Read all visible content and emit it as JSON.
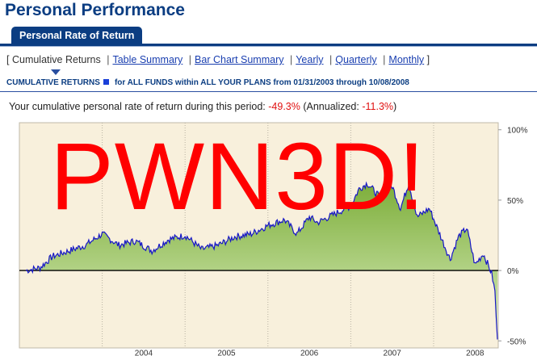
{
  "page": {
    "title": "Personal Performance"
  },
  "tabs": [
    {
      "label": "Personal Rate of Return",
      "active": true
    }
  ],
  "subnav": {
    "open_bracket": "[",
    "close_bracket": "]",
    "separator": "|",
    "items": [
      {
        "label": "Cumulative Returns",
        "current": true
      },
      {
        "label": "Table Summary",
        "current": false
      },
      {
        "label": "Bar Chart Summary",
        "current": false
      },
      {
        "label": "Yearly",
        "current": false
      },
      {
        "label": "Quarterly",
        "current": false
      },
      {
        "label": "Monthly",
        "current": false
      }
    ]
  },
  "criteria": {
    "label": "CUMULATIVE RETURNS",
    "text": "for ALL FUNDS within ALL YOUR PLANS from 01/31/2003 through 10/08/2008"
  },
  "summary": {
    "prefix": "Your cumulative personal rate of return during this period:",
    "cumulative_value": "-49.3%",
    "annualized_label": "(Annualized:",
    "annualized_value": "-11.3%",
    "annualized_close": ")"
  },
  "overlay_text": "PWN3D!",
  "colors": {
    "brand_blue": "#0b3d82",
    "link_blue": "#1a3fb0",
    "negative_red": "#e01010",
    "chart_bg": "#f8f0dc",
    "area_fill_top": "#7dae3a",
    "area_fill_bottom": "#dbeec0",
    "series_line": "#1616c8",
    "overlay_red": "#ff0000"
  },
  "chart_data": {
    "type": "area",
    "title": "",
    "xlabel": "",
    "ylabel": "",
    "x_ticks": [
      "2004",
      "2005",
      "2006",
      "2007",
      "2008"
    ],
    "y_ticks": [
      "100%",
      "50%",
      "0%",
      "-50%"
    ],
    "ylim": [
      -55,
      105
    ],
    "grid": "vertical dotted lines at year boundaries",
    "x": [
      2003.08,
      2003.25,
      2003.4,
      2003.6,
      2003.8,
      2004.0,
      2004.2,
      2004.4,
      2004.6,
      2004.8,
      2005.0,
      2005.2,
      2005.4,
      2005.6,
      2005.8,
      2006.0,
      2006.2,
      2006.35,
      2006.5,
      2006.6,
      2006.8,
      2007.0,
      2007.1,
      2007.2,
      2007.35,
      2007.5,
      2007.6,
      2007.7,
      2007.8,
      2007.95,
      2008.1,
      2008.2,
      2008.3,
      2008.4,
      2008.5,
      2008.6,
      2008.7,
      2008.74,
      2008.77
    ],
    "values": [
      0,
      2,
      10,
      14,
      18,
      26,
      18,
      21,
      14,
      22,
      25,
      15,
      18,
      24,
      26,
      32,
      36,
      26,
      38,
      34,
      40,
      46,
      58,
      62,
      52,
      60,
      44,
      62,
      38,
      44,
      22,
      8,
      24,
      30,
      4,
      12,
      -2,
      -15,
      -49
    ]
  }
}
